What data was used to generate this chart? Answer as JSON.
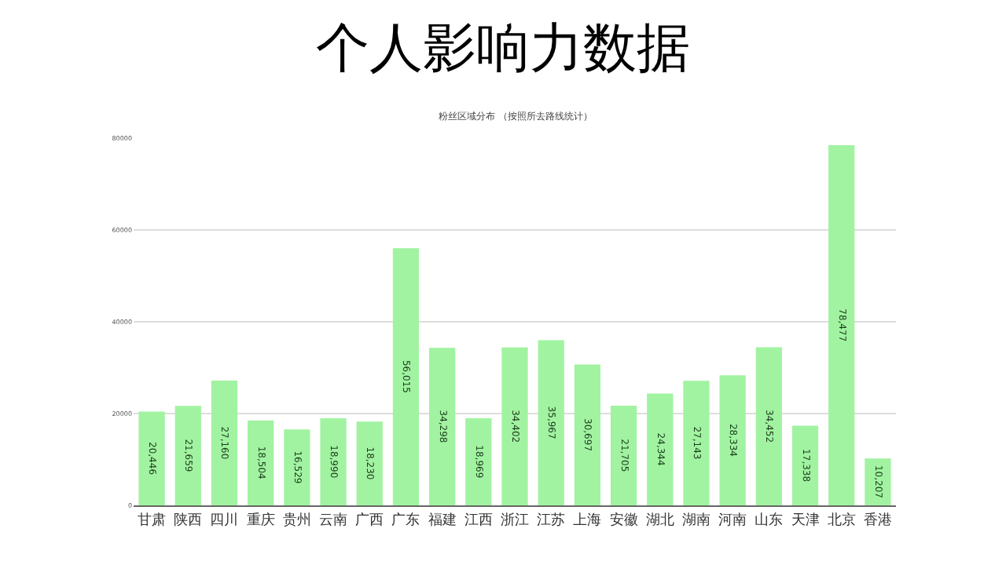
{
  "chart_data": {
    "type": "bar",
    "title": "个人影响力数据",
    "subtitle": "粉丝区域分布 （按照所去路线统计）",
    "categories": [
      "甘肃",
      "陕西",
      "四川",
      "重庆",
      "贵州",
      "云南",
      "广西",
      "广东",
      "福建",
      "江西",
      "浙江",
      "江苏",
      "上海",
      "安徽",
      "湖北",
      "湖南",
      "河南",
      "山东",
      "天津",
      "北京",
      "香港"
    ],
    "values": [
      20446,
      21659,
      27160,
      18504,
      16529,
      18990,
      18230,
      56015,
      34298,
      18969,
      34402,
      35967,
      30697,
      21705,
      24344,
      27143,
      28334,
      34452,
      17338,
      78477,
      10207
    ],
    "value_labels": [
      "20,446",
      "21,659",
      "27,160",
      "18,504",
      "16,529",
      "18,990",
      "18,230",
      "56,015",
      "34,298",
      "18,969",
      "34,402",
      "35,967",
      "30,697",
      "21,705",
      "24,344",
      "27,143",
      "28,334",
      "34,452",
      "17,338",
      "78,477",
      "10,207"
    ],
    "color": "#a1f3a1",
    "ylim": [
      0,
      80000
    ],
    "yticks": [
      0,
      20000,
      40000,
      60000,
      80000
    ],
    "grid": "y",
    "legend": false
  }
}
